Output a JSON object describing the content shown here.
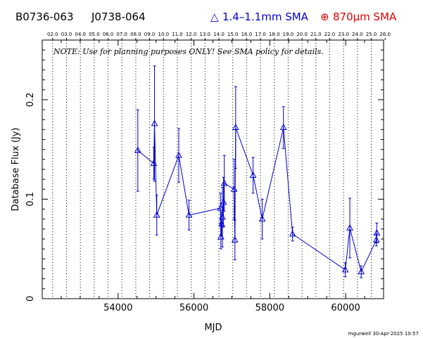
{
  "header": {
    "source_name": "B0736-063",
    "alt_name": "J0738-064",
    "legend_triangle_symbol": "△",
    "legend_triangle_label": "1.4–1.1mm SMA",
    "legend_circle_symbol": "⊕",
    "legend_circle_label": "870μm SMA"
  },
  "note": "NOTE: Use for planning purposes ONLY! See SMA policy for details.",
  "credit": "mgurwell 30-Apr-2025 10:57",
  "colors": {
    "series_1mm": "#0000cc",
    "series_870": "#dd0000",
    "axis": "#000000"
  },
  "chart_data": {
    "type": "scatter",
    "title": "",
    "xlabel": "MJD",
    "ylabel": "Database Flux (Jy)",
    "xlim": [
      52000,
      61000
    ],
    "ylim": [
      0,
      0.26
    ],
    "x_ticks": [
      54000,
      56000,
      58000,
      60000
    ],
    "x_tick_labels": [
      "54000",
      "56000",
      "58000",
      "60000"
    ],
    "y_ticks": [
      0,
      0.1,
      0.2
    ],
    "y_tick_labels": [
      "0",
      "0.1",
      "0.2"
    ],
    "top_axis_years": [
      "02.0",
      "03.0",
      "04.0",
      "05.0",
      "06.0",
      "07.0",
      "08.0",
      "09.0",
      "10.0",
      "11.0",
      "12.0",
      "13.0",
      "14.0",
      "15.0",
      "16.0",
      "17.0",
      "18.0",
      "19.0",
      "20.0",
      "21.0",
      "22.0",
      "23.0",
      "24.0",
      "25.0",
      "26.0"
    ],
    "grid": "vertical dotted lines at year boundaries",
    "series": [
      {
        "name": "1.4–1.1mm SMA",
        "marker": "triangle",
        "connected": true,
        "x": [
          54520,
          54940,
          54960,
          55020,
          55600,
          55870,
          56700,
          56710,
          56730,
          56750,
          56780,
          56800,
          57060,
          57080,
          57100,
          57560,
          57800,
          58360,
          58600,
          59990,
          60110,
          60410,
          60810,
          60820
        ],
        "y": [
          0.149,
          0.136,
          0.176,
          0.084,
          0.144,
          0.084,
          0.091,
          0.062,
          0.075,
          0.082,
          0.097,
          0.116,
          0.11,
          0.059,
          0.172,
          0.124,
          0.08,
          0.172,
          0.065,
          0.029,
          0.071,
          0.027,
          0.059,
          0.066
        ],
        "err": [
          0.041,
          0.016,
          0.058,
          0.02,
          0.027,
          0.015,
          0.015,
          0.012,
          0.012,
          0.03,
          0.025,
          0.028,
          0.03,
          0.02,
          0.041,
          0.018,
          0.02,
          0.021,
          0.007,
          0.007,
          0.03,
          0.006,
          0.006,
          0.01
        ]
      },
      {
        "name": "870μm SMA",
        "marker": "circle-plus",
        "connected": false,
        "x": [],
        "y": [],
        "err": []
      }
    ]
  }
}
